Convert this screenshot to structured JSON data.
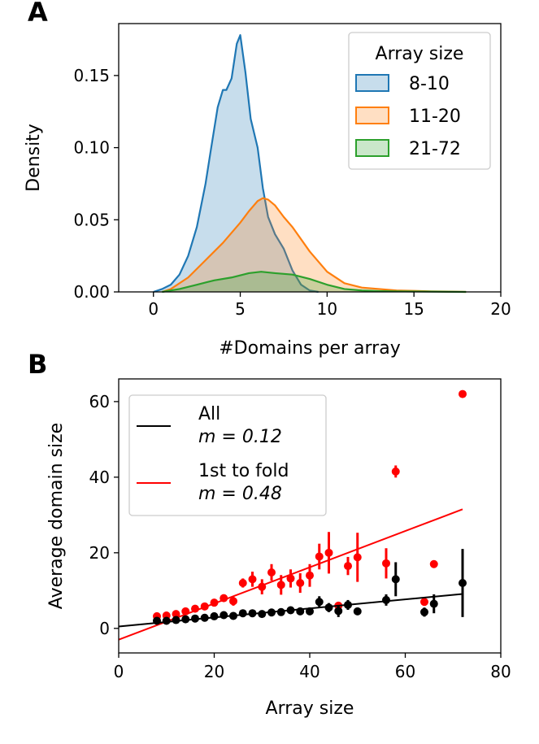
{
  "chart_data": [
    {
      "panel": "A",
      "type": "area",
      "xlabel": "#Domains per array",
      "ylabel": "Density",
      "xlim": [
        -2,
        20
      ],
      "ylim": [
        0,
        0.186
      ],
      "xticks": [
        0,
        5,
        10,
        15,
        20
      ],
      "yticks": [
        0.0,
        0.05,
        0.1,
        0.15
      ],
      "xtick_labels": [
        "0",
        "5",
        "10",
        "15",
        "20"
      ],
      "ytick_labels": [
        "0.00",
        "0.05",
        "0.10",
        "0.15"
      ],
      "legend": {
        "title": "Array size",
        "position": "top-right"
      },
      "series": [
        {
          "name": "8-10",
          "color": "#1f77b4",
          "x": [
            0,
            0.5,
            1,
            1.5,
            2,
            2.5,
            3,
            3.3,
            3.7,
            4,
            4.2,
            4.5,
            4.8,
            5,
            5.3,
            5.6,
            6,
            6.3,
            6.6,
            7,
            7.5,
            8,
            8.5,
            9,
            9.5
          ],
          "values": [
            0,
            0.002,
            0.005,
            0.012,
            0.025,
            0.045,
            0.075,
            0.098,
            0.128,
            0.14,
            0.14,
            0.148,
            0.172,
            0.178,
            0.152,
            0.12,
            0.1,
            0.072,
            0.052,
            0.04,
            0.03,
            0.015,
            0.005,
            0.001,
            0
          ]
        },
        {
          "name": "11-20",
          "color": "#ff7f0e",
          "x": [
            0.5,
            1,
            2,
            3,
            4,
            5,
            5.5,
            6,
            6.3,
            6.6,
            7,
            7.5,
            8,
            9,
            10,
            11,
            12,
            13,
            14,
            15,
            16,
            17,
            18
          ],
          "values": [
            0,
            0.002,
            0.01,
            0.022,
            0.034,
            0.048,
            0.056,
            0.063,
            0.065,
            0.064,
            0.06,
            0.052,
            0.045,
            0.028,
            0.014,
            0.006,
            0.003,
            0.002,
            0.001,
            0.0007,
            0.0004,
            0.0002,
            0
          ]
        },
        {
          "name": "21-72",
          "color": "#2ca02c",
          "x": [
            0.5,
            1.5,
            2.5,
            3.5,
            4.5,
            5.5,
            6.2,
            7,
            8,
            9,
            10,
            11,
            12,
            13,
            14,
            16,
            18
          ],
          "values": [
            0,
            0.002,
            0.005,
            0.008,
            0.01,
            0.013,
            0.014,
            0.013,
            0.012,
            0.009,
            0.005,
            0.002,
            0.001,
            0.0006,
            0.0004,
            0.0002,
            0
          ]
        }
      ]
    },
    {
      "panel": "B",
      "type": "scatter",
      "xlabel": "Array size",
      "ylabel": "Average domain size",
      "xlim": [
        0,
        80
      ],
      "ylim": [
        -6.5,
        66
      ],
      "xticks": [
        0,
        20,
        40,
        60,
        80
      ],
      "yticks": [
        0,
        20,
        40,
        60
      ],
      "xtick_labels": [
        "0",
        "20",
        "40",
        "60",
        "80"
      ],
      "ytick_labels": [
        "0",
        "20",
        "40",
        "60"
      ],
      "legend": {
        "position": "top-left"
      },
      "series": [
        {
          "name": "All",
          "legend_label": "All",
          "slope_label": "m = 0.12",
          "color": "#000000",
          "fit": {
            "x": [
              0,
              72
            ],
            "y": [
              0.5,
              9.1
            ]
          },
          "x": [
            8,
            10,
            12,
            14,
            16,
            18,
            20,
            22,
            24,
            26,
            28,
            30,
            32,
            34,
            36,
            38,
            40,
            42,
            44,
            46,
            48,
            50,
            56,
            58,
            64,
            66,
            72
          ],
          "values": [
            2,
            2,
            2.2,
            2.4,
            2.6,
            2.8,
            3.2,
            3.5,
            3.3,
            4,
            4,
            3.8,
            4.2,
            4.3,
            4.8,
            4.5,
            4.5,
            7,
            5.5,
            4.6,
            6.2,
            4.5,
            7.5,
            13,
            4.3,
            6.5,
            12
          ],
          "errors": [
            0.4,
            0.4,
            0.4,
            0.4,
            0.4,
            0.4,
            0.5,
            0.5,
            0.5,
            0.5,
            0.5,
            0.5,
            0.6,
            0.6,
            0.7,
            0.7,
            0.8,
            1.5,
            1.2,
            1.6,
            1.3,
            0.8,
            1.5,
            4.5,
            1.2,
            2.5,
            9
          ]
        },
        {
          "name": "1st to fold",
          "legend_label": "1st to fold",
          "slope_label": "m = 0.48",
          "color": "#ff0000",
          "fit": {
            "x": [
              0,
              72
            ],
            "y": [
              -3,
              31.5
            ]
          },
          "x": [
            8,
            10,
            12,
            14,
            16,
            18,
            20,
            22,
            24,
            26,
            28,
            30,
            32,
            34,
            36,
            38,
            40,
            42,
            44,
            46,
            48,
            50,
            56,
            58,
            64,
            66,
            72
          ],
          "values": [
            3.2,
            3.4,
            3.8,
            4.5,
            5.2,
            5.8,
            6.8,
            8,
            7.2,
            12,
            13,
            11,
            14.8,
            11.5,
            13.2,
            12,
            14,
            19,
            20,
            6,
            16.5,
            18.8,
            17.2,
            41.5,
            7,
            17,
            62
          ],
          "errors": [
            0.4,
            0.4,
            0.5,
            0.5,
            0.6,
            0.6,
            0.8,
            0.9,
            1.2,
            1.2,
            2,
            2,
            2.2,
            2.6,
            2.4,
            2.6,
            3,
            3.4,
            5.5,
            0.6,
            2.4,
            6.5,
            4,
            1.6,
            0.5,
            0.5,
            0.3
          ]
        }
      ]
    }
  ]
}
